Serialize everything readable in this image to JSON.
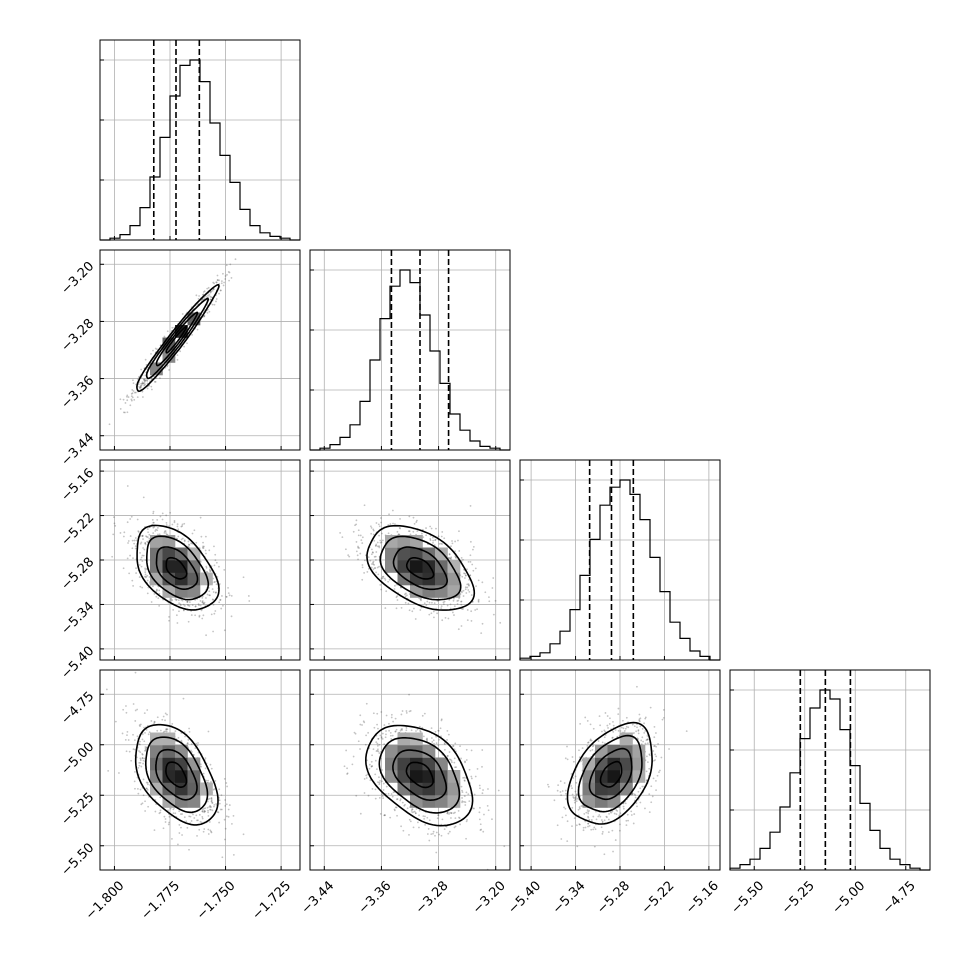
{
  "chart_data": {
    "type": "corner",
    "grid": true,
    "parameters": [
      {
        "mean": -1.7723,
        "std": 0.0092,
        "lim": [
          -1.8065,
          -1.7165
        ],
        "ticks": [
          -1.8,
          -1.775,
          -1.75,
          -1.725
        ],
        "tick_labels": [
          "−1.800",
          "−1.775",
          "−1.750",
          "−1.725"
        ],
        "quantiles": [
          -1.7823,
          -1.7723,
          -1.7618
        ]
      },
      {
        "mean": -3.306,
        "std": 0.037,
        "lim": [
          -3.46,
          -3.18
        ],
        "ticks": [
          -3.44,
          -3.36,
          -3.28,
          -3.2
        ],
        "tick_labels": [
          "−3.44",
          "−3.36",
          "−3.28",
          "−3.20"
        ],
        "quantiles": [
          -3.346,
          -3.306,
          -3.266
        ]
      },
      {
        "mean": -5.2915,
        "std": 0.0285,
        "lim": [
          -5.415,
          -5.145
        ],
        "ticks": [
          -5.4,
          -5.34,
          -5.28,
          -5.22,
          -5.16
        ],
        "tick_labels": [
          "−5.40",
          "−5.34",
          "−5.28",
          "−5.22",
          "−5.16"
        ],
        "quantiles": [
          -5.321,
          -5.2915,
          -5.262
        ]
      },
      {
        "mean": -5.148,
        "std": 0.124,
        "lim": [
          -5.62,
          -4.63
        ],
        "ticks": [
          -5.5,
          -5.25,
          -5.0,
          -4.75
        ],
        "tick_labels": [
          "−5.50",
          "−5.25",
          "−5.00",
          "−4.75"
        ],
        "quantiles": [
          -5.272,
          -5.148,
          -5.024
        ]
      }
    ],
    "histograms": [
      {
        "bins": [
          -1.8065,
          -1.7165
        ],
        "counts": [
          0,
          1,
          3,
          8,
          18,
          35,
          57,
          80,
          97,
          100,
          88,
          65,
          47,
          32,
          17,
          8,
          4,
          2,
          1,
          0
        ]
      },
      {
        "bins": [
          -3.46,
          -3.18
        ],
        "counts": [
          0,
          1,
          3,
          7,
          14,
          27,
          50,
          73,
          91,
          100,
          93,
          75,
          55,
          37,
          20,
          11,
          5,
          2,
          1,
          0
        ]
      },
      {
        "bins": [
          -5.415,
          -5.145
        ],
        "counts": [
          1,
          2,
          4,
          9,
          16,
          28,
          47,
          67,
          86,
          96,
          100,
          92,
          78,
          57,
          38,
          21,
          12,
          5,
          2,
          0
        ]
      },
      {
        "bins": [
          -5.62,
          -4.63
        ],
        "counts": [
          1,
          3,
          6,
          12,
          21,
          35,
          54,
          73,
          90,
          100,
          95,
          78,
          58,
          37,
          22,
          12,
          6,
          3,
          1,
          0
        ]
      }
    ],
    "correlations": {
      "1-0": 0.97,
      "2-0": -0.45,
      "2-1": -0.45,
      "3-0": -0.45,
      "3-1": -0.4,
      "3-2": 0.4
    },
    "contour_levels_sigma": [
      0.5,
      1.0,
      1.5,
      2.0
    ]
  }
}
